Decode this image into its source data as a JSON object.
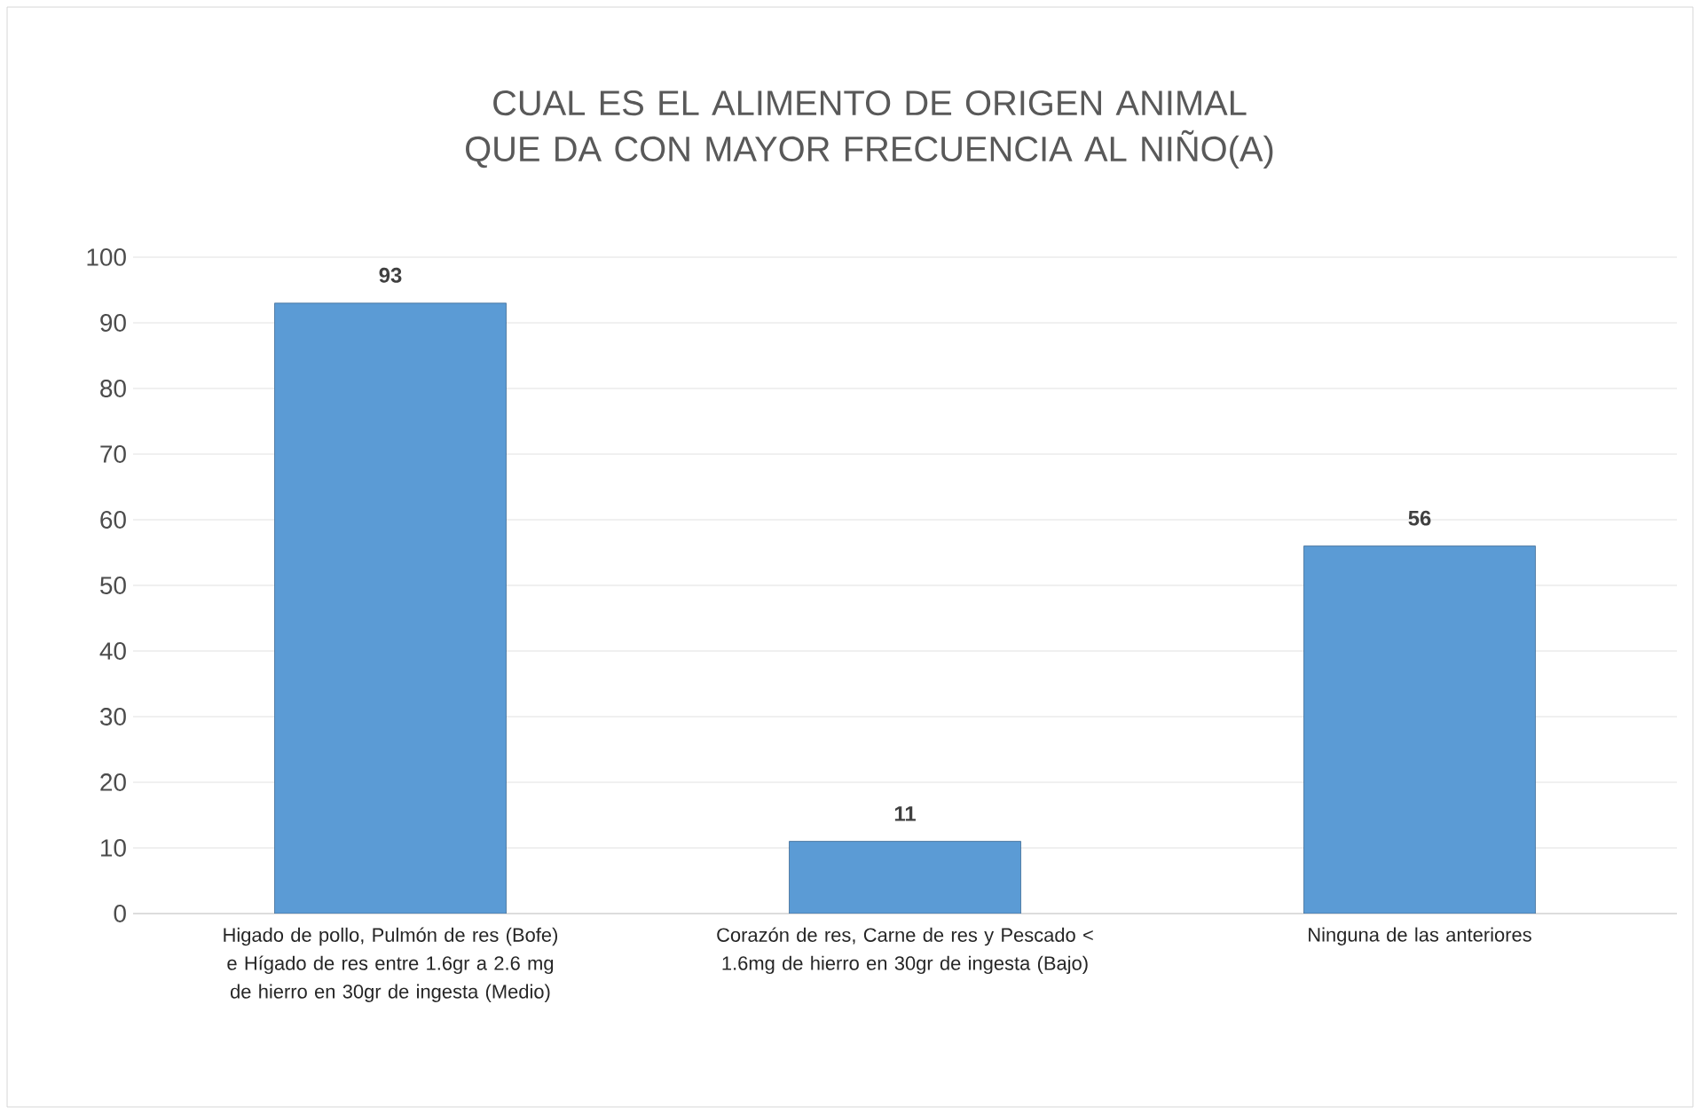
{
  "chart_data": {
    "type": "bar",
    "title": "CUAL ES EL ALIMENTO DE ORIGEN ANIMAL QUE DA CON MAYOR FRECUENCIA AL NIÑO(A)",
    "categories": [
      "Higado de pollo, Pulmón de res (Bofe) e Hígado de res entre 1.6gr a 2.6 mg de hierro en 30gr de ingesta (Medio)",
      "Corazón de res, Carne de res y Pescado < 1.6mg de hierro en 30gr de ingesta (Bajo)",
      "Ninguna de las anteriores"
    ],
    "values": [
      93,
      11,
      56
    ],
    "color": "#5b9bd5",
    "ylim": [
      0,
      100
    ],
    "yticks": [
      0,
      10,
      20,
      30,
      40,
      50,
      60,
      70,
      80,
      90,
      100
    ],
    "grid": "y",
    "data_labels": true
  }
}
